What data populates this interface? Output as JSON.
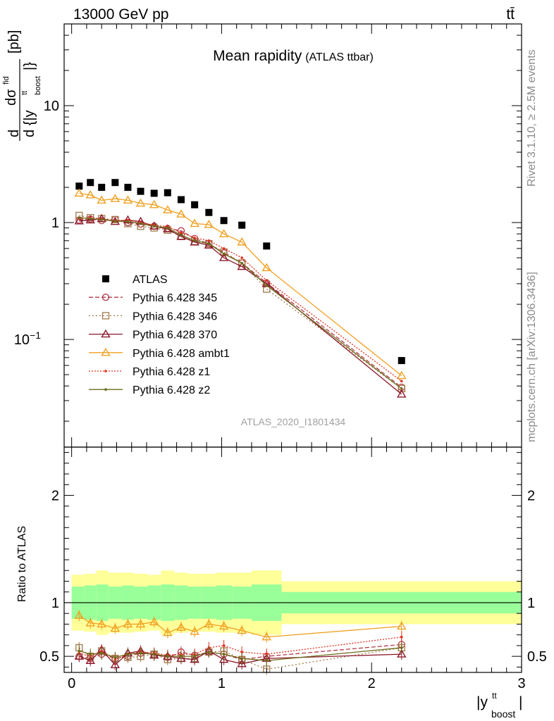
{
  "header": {
    "left": "13000 GeV pp",
    "right": "tt̄"
  },
  "side_labels": {
    "rivet": "Rivet 3.1.10, ≥ 2.5M events",
    "mcplots": "mcplots.cern.ch [arXiv:1306.3436]"
  },
  "chart_data": [
    {
      "type": "scatter",
      "title": "Mean rapidity",
      "subtitle": "(ATLAS ttbar)",
      "analysis_id": "ATLAS_2020_I1801434",
      "ylabel": "d dσ^fid / d{|y^tt_boost|} [pb]",
      "ylabel_parts": {
        "d": "d",
        "sigma": "dσ",
        "fid": "fid",
        "den": "d {|y",
        "tt": "tt",
        "boost": "boost",
        "close": "|}",
        "unit": "[pb]"
      },
      "yscale": "log",
      "ylim": [
        0.012,
        50
      ],
      "xlim": [
        -0.05,
        3.0
      ],
      "yticks": [
        {
          "label": "10",
          "exp": "",
          "value": 10
        },
        {
          "label": "1",
          "exp": "",
          "value": 1
        },
        {
          "label": "10",
          "exp": "−1",
          "value": 0.1
        }
      ],
      "legend_position": "left-middle",
      "x": [
        0.05,
        0.125,
        0.2,
        0.29,
        0.375,
        0.46,
        0.55,
        0.64,
        0.73,
        0.82,
        0.915,
        1.015,
        1.135,
        1.3,
        2.2
      ],
      "series": [
        {
          "name": "ATLAS",
          "marker": "square",
          "color": "#000000",
          "dash": "none",
          "values": [
            2.05,
            2.2,
            2.0,
            2.2,
            2.0,
            1.85,
            1.78,
            1.8,
            1.57,
            1.42,
            1.22,
            1.04,
            0.95,
            0.63,
            0.066
          ]
        },
        {
          "name": "Pythia 6.428 345",
          "marker": "circle",
          "color": "#b23a48",
          "dash": "6,3",
          "values": [
            1.05,
            1.07,
            1.04,
            1.06,
            1.0,
            0.97,
            0.93,
            0.89,
            0.85,
            0.73,
            0.66,
            0.55,
            0.45,
            0.305,
            0.039
          ]
        },
        {
          "name": "Pythia 6.428 346",
          "marker": "square-open",
          "color": "#a0784a",
          "dash": "2,3",
          "values": [
            1.15,
            1.1,
            1.08,
            1.06,
            0.98,
            0.93,
            0.9,
            0.86,
            0.76,
            0.69,
            0.66,
            0.56,
            0.45,
            0.27,
            0.038
          ]
        },
        {
          "name": "Pythia 6.428 370",
          "marker": "triangle-open",
          "color": "#8b1a2c",
          "dash": "none",
          "values": [
            1.03,
            1.05,
            1.08,
            1.02,
            1.05,
            1.02,
            0.93,
            0.88,
            0.76,
            0.68,
            0.64,
            0.5,
            0.42,
            0.3,
            0.034
          ]
        },
        {
          "name": "Pythia 6.428 ambt1",
          "marker": "triangle-open",
          "color": "#f0a020",
          "dash": "none",
          "values": [
            1.78,
            1.72,
            1.55,
            1.6,
            1.55,
            1.46,
            1.42,
            1.28,
            1.18,
            0.98,
            0.96,
            0.8,
            0.68,
            0.41,
            0.049
          ]
        },
        {
          "name": "Pythia 6.428 z1",
          "marker": "dot",
          "color": "#e03020",
          "dash": "2,2",
          "values": [
            1.08,
            1.1,
            1.07,
            1.04,
            1.05,
            1.0,
            0.95,
            0.92,
            0.82,
            0.74,
            0.7,
            0.6,
            0.5,
            0.32,
            0.044
          ]
        },
        {
          "name": "Pythia 6.428 z2",
          "marker": "dot",
          "color": "#6b6b1a",
          "dash": "none",
          "values": [
            1.1,
            1.08,
            1.06,
            1.03,
            1.02,
            0.98,
            0.93,
            0.9,
            0.78,
            0.7,
            0.66,
            0.54,
            0.45,
            0.29,
            0.038
          ]
        }
      ]
    },
    {
      "type": "scatter",
      "ylabel": "Ratio to ATLAS",
      "xlabel": "|y^tt_boost|",
      "xlabel_parts": {
        "bar_open": "|y",
        "tt": "tt",
        "boost": "boost",
        "bar_close": "|"
      },
      "ylim": [
        0.35,
        2.45
      ],
      "xlim": [
        -0.05,
        3.0
      ],
      "yticks": [
        {
          "label": "2",
          "value": 2
        },
        {
          "label": "1",
          "value": 1
        },
        {
          "label": "0.5",
          "value": 0.5
        }
      ],
      "xticks": [
        {
          "label": "0",
          "value": 0
        },
        {
          "label": "1",
          "value": 1
        },
        {
          "label": "2",
          "value": 2
        },
        {
          "label": "3",
          "value": 3
        }
      ],
      "bin_edges": [
        0.0,
        0.085,
        0.165,
        0.245,
        0.335,
        0.415,
        0.505,
        0.595,
        0.685,
        0.775,
        0.865,
        0.965,
        1.07,
        1.2,
        1.4,
        3.0
      ],
      "band_stat_half": [
        0.15,
        0.16,
        0.17,
        0.15,
        0.16,
        0.15,
        0.16,
        0.17,
        0.16,
        0.15,
        0.15,
        0.16,
        0.15,
        0.17,
        0.1
      ],
      "band_total_half": [
        0.26,
        0.27,
        0.3,
        0.28,
        0.28,
        0.27,
        0.26,
        0.3,
        0.28,
        0.27,
        0.27,
        0.28,
        0.28,
        0.3,
        0.2
      ],
      "band_colors": {
        "stat": "#99ff99",
        "total": "#ffff99"
      },
      "series": [
        {
          "name": "Pythia 6.428 345",
          "marker": "circle",
          "color": "#b23a48",
          "dash": "6,3",
          "values": [
            0.5,
            0.48,
            0.52,
            0.48,
            0.5,
            0.53,
            0.52,
            0.49,
            0.54,
            0.51,
            0.54,
            0.52,
            0.47,
            0.5,
            0.61
          ]
        },
        {
          "name": "Pythia 6.428 346",
          "marker": "square-open",
          "color": "#a0784a",
          "dash": "2,3",
          "values": [
            0.58,
            0.5,
            0.55,
            0.48,
            0.49,
            0.5,
            0.52,
            0.47,
            0.48,
            0.48,
            0.54,
            0.55,
            0.47,
            0.38,
            0.58
          ]
        },
        {
          "name": "Pythia 6.428 370",
          "marker": "triangle-open",
          "color": "#8b1a2c",
          "dash": "none",
          "values": [
            0.5,
            0.46,
            0.56,
            0.42,
            0.53,
            0.55,
            0.51,
            0.5,
            0.48,
            0.47,
            0.55,
            0.47,
            0.43,
            0.48,
            0.52
          ]
        },
        {
          "name": "Pythia 6.428 ambt1",
          "marker": "triangle-open",
          "color": "#f0a020",
          "dash": "none",
          "values": [
            0.88,
            0.81,
            0.8,
            0.76,
            0.8,
            0.8,
            0.82,
            0.72,
            0.77,
            0.73,
            0.8,
            0.78,
            0.74,
            0.68,
            0.78
          ]
        },
        {
          "name": "Pythia 6.428 z1",
          "marker": "dot",
          "color": "#e03020",
          "dash": "2,2",
          "values": [
            0.53,
            0.5,
            0.55,
            0.47,
            0.52,
            0.54,
            0.53,
            0.51,
            0.52,
            0.52,
            0.58,
            0.6,
            0.54,
            0.52,
            0.68
          ]
        },
        {
          "name": "Pythia 6.428 z2",
          "marker": "dot",
          "color": "#6b6b1a",
          "dash": "none",
          "values": [
            0.55,
            0.52,
            0.53,
            0.49,
            0.52,
            0.53,
            0.52,
            0.5,
            0.5,
            0.5,
            0.54,
            0.52,
            0.48,
            0.46,
            0.58
          ]
        }
      ]
    }
  ]
}
